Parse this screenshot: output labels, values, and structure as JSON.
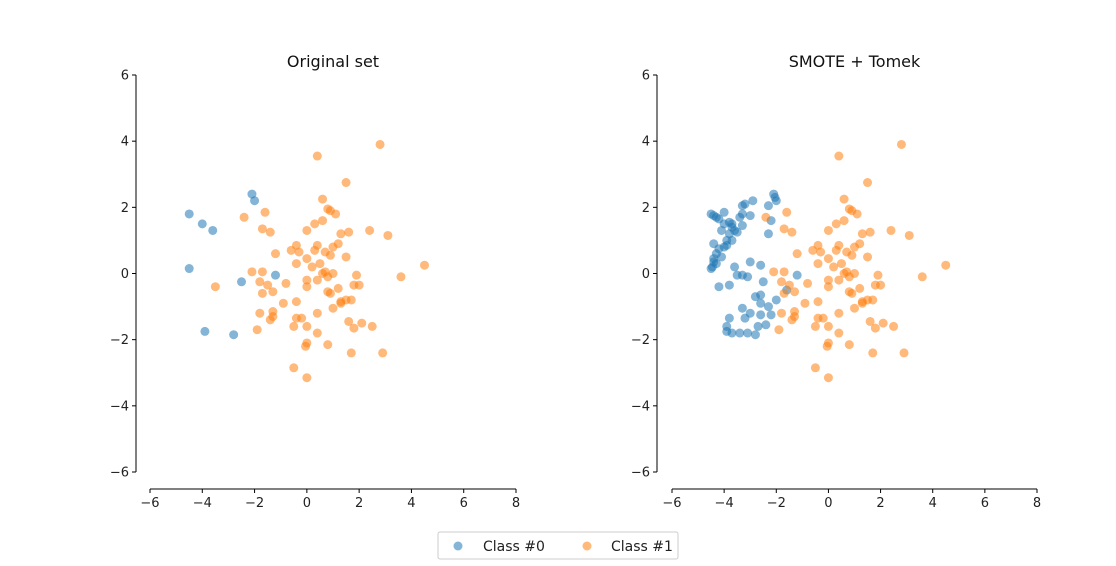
{
  "colors": {
    "class0": "#1f77b4",
    "class1": "#ff7f0e"
  },
  "legend": {
    "placement": "bottom-center",
    "items": [
      {
        "label": "Class #0",
        "color": "#1f77b4"
      },
      {
        "label": "Class #1",
        "color": "#ff7f0e"
      }
    ]
  },
  "chart_data": [
    {
      "type": "scatter",
      "title": "Original set",
      "xlim": [
        -6,
        8
      ],
      "ylim": [
        -6,
        6
      ],
      "xticks": [
        -6,
        -4,
        -2,
        0,
        2,
        4,
        6,
        8
      ],
      "yticks": [
        -6,
        -4,
        -2,
        0,
        2,
        4,
        6
      ],
      "grid": false,
      "series": [
        {
          "name": "Class #0",
          "color": "#1f77b4",
          "points": [
            [
              -4.5,
              1.8
            ],
            [
              -4.0,
              1.5
            ],
            [
              -3.6,
              1.3
            ],
            [
              -4.5,
              0.15
            ],
            [
              -2.1,
              2.4
            ],
            [
              -2.0,
              2.2
            ],
            [
              -2.5,
              -0.25
            ],
            [
              -1.2,
              -0.05
            ],
            [
              -3.9,
              -1.75
            ],
            [
              -2.8,
              -1.85
            ]
          ]
        },
        {
          "name": "Class #1",
          "color": "#ff7f0e",
          "points": [
            [
              0.4,
              3.55
            ],
            [
              2.8,
              3.9
            ],
            [
              1.5,
              2.75
            ],
            [
              0.6,
              2.25
            ],
            [
              -2.4,
              1.7
            ],
            [
              0.8,
              1.95
            ],
            [
              0.9,
              1.9
            ],
            [
              1.1,
              1.8
            ],
            [
              -1.6,
              1.85
            ],
            [
              0.3,
              1.5
            ],
            [
              0.6,
              1.6
            ],
            [
              -1.7,
              1.35
            ],
            [
              -1.4,
              1.25
            ],
            [
              0.0,
              1.3
            ],
            [
              1.3,
              1.2
            ],
            [
              1.6,
              1.25
            ],
            [
              2.4,
              1.3
            ],
            [
              3.1,
              1.15
            ],
            [
              -0.4,
              0.85
            ],
            [
              0.4,
              0.85
            ],
            [
              -0.6,
              0.7
            ],
            [
              -0.3,
              0.65
            ],
            [
              0.7,
              0.65
            ],
            [
              1.0,
              0.8
            ],
            [
              1.2,
              0.9
            ],
            [
              1.5,
              0.5
            ],
            [
              -1.2,
              0.6
            ],
            [
              -0.4,
              0.3
            ],
            [
              0.0,
              0.45
            ],
            [
              0.5,
              0.3
            ],
            [
              0.9,
              0.55
            ],
            [
              -2.1,
              0.05
            ],
            [
              -1.7,
              0.05
            ],
            [
              0.2,
              0.2
            ],
            [
              0.6,
              0.0
            ],
            [
              0.8,
              -0.1
            ],
            [
              1.0,
              0.0
            ],
            [
              0.7,
              0.05
            ],
            [
              1.9,
              -0.05
            ],
            [
              -1.8,
              -0.25
            ],
            [
              -1.5,
              -0.35
            ],
            [
              -0.8,
              -0.3
            ],
            [
              0.0,
              -0.2
            ],
            [
              0.4,
              -0.2
            ],
            [
              1.2,
              -0.45
            ],
            [
              2.0,
              -0.35
            ],
            [
              1.8,
              -0.35
            ],
            [
              3.6,
              -0.1
            ],
            [
              4.5,
              0.25
            ],
            [
              -3.5,
              -0.4
            ],
            [
              -1.7,
              -0.6
            ],
            [
              -1.3,
              -0.55
            ],
            [
              -0.9,
              -0.9
            ],
            [
              -0.4,
              -0.85
            ],
            [
              0.0,
              -0.4
            ],
            [
              0.8,
              -0.55
            ],
            [
              1.3,
              -0.85
            ],
            [
              1.5,
              -0.8
            ],
            [
              1.7,
              -0.8
            ],
            [
              1.0,
              -1.05
            ],
            [
              -1.8,
              -1.2
            ],
            [
              -1.3,
              -1.15
            ],
            [
              -1.3,
              -1.3
            ],
            [
              -1.4,
              -1.4
            ],
            [
              -0.4,
              -1.35
            ],
            [
              -0.2,
              -1.35
            ],
            [
              0.4,
              -1.2
            ],
            [
              1.6,
              -1.45
            ],
            [
              2.1,
              -1.5
            ],
            [
              -1.9,
              -1.7
            ],
            [
              -0.5,
              -1.6
            ],
            [
              0.0,
              -1.6
            ],
            [
              0.4,
              -1.8
            ],
            [
              1.8,
              -1.65
            ],
            [
              2.5,
              -1.6
            ],
            [
              0.0,
              -2.1
            ],
            [
              0.8,
              -2.15
            ],
            [
              1.7,
              -2.4
            ],
            [
              2.9,
              -2.4
            ],
            [
              -0.5,
              -2.85
            ],
            [
              0.0,
              -3.15
            ],
            [
              -0.05,
              -2.2
            ],
            [
              0.9,
              -0.6
            ],
            [
              1.3,
              -0.9
            ],
            [
              0.3,
              0.7
            ]
          ]
        }
      ]
    },
    {
      "type": "scatter",
      "title": "SMOTE + Tomek",
      "xlim": [
        -6,
        8
      ],
      "ylim": [
        -6,
        6
      ],
      "xticks": [
        -6,
        -4,
        -2,
        0,
        2,
        4,
        6,
        8
      ],
      "yticks": [
        -6,
        -4,
        -2,
        0,
        2,
        4,
        6
      ],
      "grid": false,
      "series": [
        {
          "name": "Class #0",
          "color": "#1f77b4",
          "points": [
            [
              -4.5,
              1.8
            ],
            [
              -4.4,
              1.75
            ],
            [
              -4.3,
              1.7
            ],
            [
              -4.2,
              1.65
            ],
            [
              -4.0,
              1.5
            ],
            [
              -3.8,
              1.55
            ],
            [
              -3.7,
              1.4
            ],
            [
              -3.6,
              1.3
            ],
            [
              -4.1,
              1.3
            ],
            [
              -3.8,
              1.2
            ],
            [
              -4.0,
              1.85
            ],
            [
              -3.3,
              2.05
            ],
            [
              -3.2,
              2.1
            ],
            [
              -2.9,
              2.2
            ],
            [
              -2.1,
              2.4
            ],
            [
              -2.05,
              2.3
            ],
            [
              -2.0,
              2.2
            ],
            [
              -2.3,
              2.05
            ],
            [
              -3.3,
              1.8
            ],
            [
              -3.0,
              1.75
            ],
            [
              -3.3,
              1.45
            ],
            [
              -3.5,
              1.25
            ],
            [
              -3.7,
              1.0
            ],
            [
              -3.9,
              1.0
            ],
            [
              -4.0,
              0.8
            ],
            [
              -4.2,
              0.75
            ],
            [
              -4.4,
              0.9
            ],
            [
              -4.3,
              0.6
            ],
            [
              -4.4,
              0.45
            ],
            [
              -4.4,
              0.35
            ],
            [
              -4.45,
              0.2
            ],
            [
              -4.5,
              0.15
            ],
            [
              -4.2,
              -0.4
            ],
            [
              -3.8,
              -0.35
            ],
            [
              -3.6,
              0.2
            ],
            [
              -3.5,
              -0.05
            ],
            [
              -3.3,
              -0.05
            ],
            [
              -3.0,
              0.35
            ],
            [
              -3.1,
              -0.1
            ],
            [
              -2.6,
              0.25
            ],
            [
              -2.5,
              -0.25
            ],
            [
              -2.3,
              1.2
            ],
            [
              -2.2,
              1.6
            ],
            [
              -2.6,
              -0.65
            ],
            [
              -2.8,
              -0.7
            ],
            [
              -2.6,
              -0.9
            ],
            [
              -2.3,
              -1.0
            ],
            [
              -2.0,
              -0.8
            ],
            [
              -1.2,
              -0.05
            ],
            [
              -1.6,
              -0.5
            ],
            [
              -2.2,
              -1.25
            ],
            [
              -2.6,
              -1.25
            ],
            [
              -3.0,
              -1.2
            ],
            [
              -3.3,
              -1.05
            ],
            [
              -3.2,
              -1.35
            ],
            [
              -3.8,
              -1.35
            ],
            [
              -3.9,
              -1.6
            ],
            [
              -3.9,
              -1.75
            ],
            [
              -3.7,
              -1.8
            ],
            [
              -3.4,
              -1.8
            ],
            [
              -3.1,
              -1.8
            ],
            [
              -2.8,
              -1.85
            ],
            [
              -2.7,
              -1.6
            ],
            [
              -2.4,
              -1.55
            ],
            [
              -3.7,
              1.5
            ],
            [
              -3.4,
              1.7
            ],
            [
              -4.1,
              0.5
            ],
            [
              -3.9,
              0.85
            ],
            [
              -4.3,
              0.3
            ]
          ]
        },
        {
          "name": "Class #1",
          "color": "#ff7f0e",
          "points": [
            [
              0.4,
              3.55
            ],
            [
              2.8,
              3.9
            ],
            [
              1.5,
              2.75
            ],
            [
              0.6,
              2.25
            ],
            [
              -2.4,
              1.7
            ],
            [
              0.8,
              1.95
            ],
            [
              0.9,
              1.9
            ],
            [
              1.1,
              1.8
            ],
            [
              -1.6,
              1.85
            ],
            [
              0.3,
              1.5
            ],
            [
              0.6,
              1.6
            ],
            [
              -1.7,
              1.35
            ],
            [
              -1.4,
              1.25
            ],
            [
              0.0,
              1.3
            ],
            [
              1.3,
              1.2
            ],
            [
              1.6,
              1.25
            ],
            [
              2.4,
              1.3
            ],
            [
              3.1,
              1.15
            ],
            [
              -0.4,
              0.85
            ],
            [
              0.4,
              0.85
            ],
            [
              -0.6,
              0.7
            ],
            [
              -0.3,
              0.65
            ],
            [
              0.7,
              0.65
            ],
            [
              1.0,
              0.8
            ],
            [
              1.2,
              0.9
            ],
            [
              1.5,
              0.5
            ],
            [
              -1.2,
              0.6
            ],
            [
              -0.4,
              0.3
            ],
            [
              0.0,
              0.45
            ],
            [
              0.5,
              0.3
            ],
            [
              0.9,
              0.55
            ],
            [
              -2.1,
              0.05
            ],
            [
              -1.7,
              0.05
            ],
            [
              0.2,
              0.2
            ],
            [
              0.6,
              0.0
            ],
            [
              0.8,
              -0.1
            ],
            [
              1.0,
              0.0
            ],
            [
              0.7,
              0.05
            ],
            [
              1.9,
              -0.05
            ],
            [
              -1.8,
              -0.25
            ],
            [
              -1.5,
              -0.35
            ],
            [
              -0.8,
              -0.3
            ],
            [
              0.0,
              -0.2
            ],
            [
              0.4,
              -0.2
            ],
            [
              1.2,
              -0.45
            ],
            [
              2.0,
              -0.35
            ],
            [
              1.8,
              -0.35
            ],
            [
              3.6,
              -0.1
            ],
            [
              4.5,
              0.25
            ],
            [
              -1.7,
              -0.6
            ],
            [
              -1.3,
              -0.55
            ],
            [
              -0.9,
              -0.9
            ],
            [
              -0.4,
              -0.85
            ],
            [
              0.0,
              -0.4
            ],
            [
              0.8,
              -0.55
            ],
            [
              1.3,
              -0.85
            ],
            [
              1.5,
              -0.8
            ],
            [
              1.7,
              -0.8
            ],
            [
              1.0,
              -1.05
            ],
            [
              -1.8,
              -1.2
            ],
            [
              -1.3,
              -1.15
            ],
            [
              -1.3,
              -1.3
            ],
            [
              -1.4,
              -1.4
            ],
            [
              -0.4,
              -1.35
            ],
            [
              -0.2,
              -1.35
            ],
            [
              0.4,
              -1.2
            ],
            [
              1.6,
              -1.45
            ],
            [
              2.1,
              -1.5
            ],
            [
              -1.9,
              -1.7
            ],
            [
              -0.5,
              -1.6
            ],
            [
              0.0,
              -1.6
            ],
            [
              0.4,
              -1.8
            ],
            [
              1.8,
              -1.65
            ],
            [
              2.5,
              -1.6
            ],
            [
              0.0,
              -2.1
            ],
            [
              0.8,
              -2.15
            ],
            [
              1.7,
              -2.4
            ],
            [
              2.9,
              -2.4
            ],
            [
              -0.5,
              -2.85
            ],
            [
              0.0,
              -3.15
            ],
            [
              -0.05,
              -2.2
            ],
            [
              0.9,
              -0.6
            ],
            [
              1.3,
              -0.9
            ],
            [
              0.3,
              0.7
            ]
          ]
        }
      ]
    }
  ]
}
